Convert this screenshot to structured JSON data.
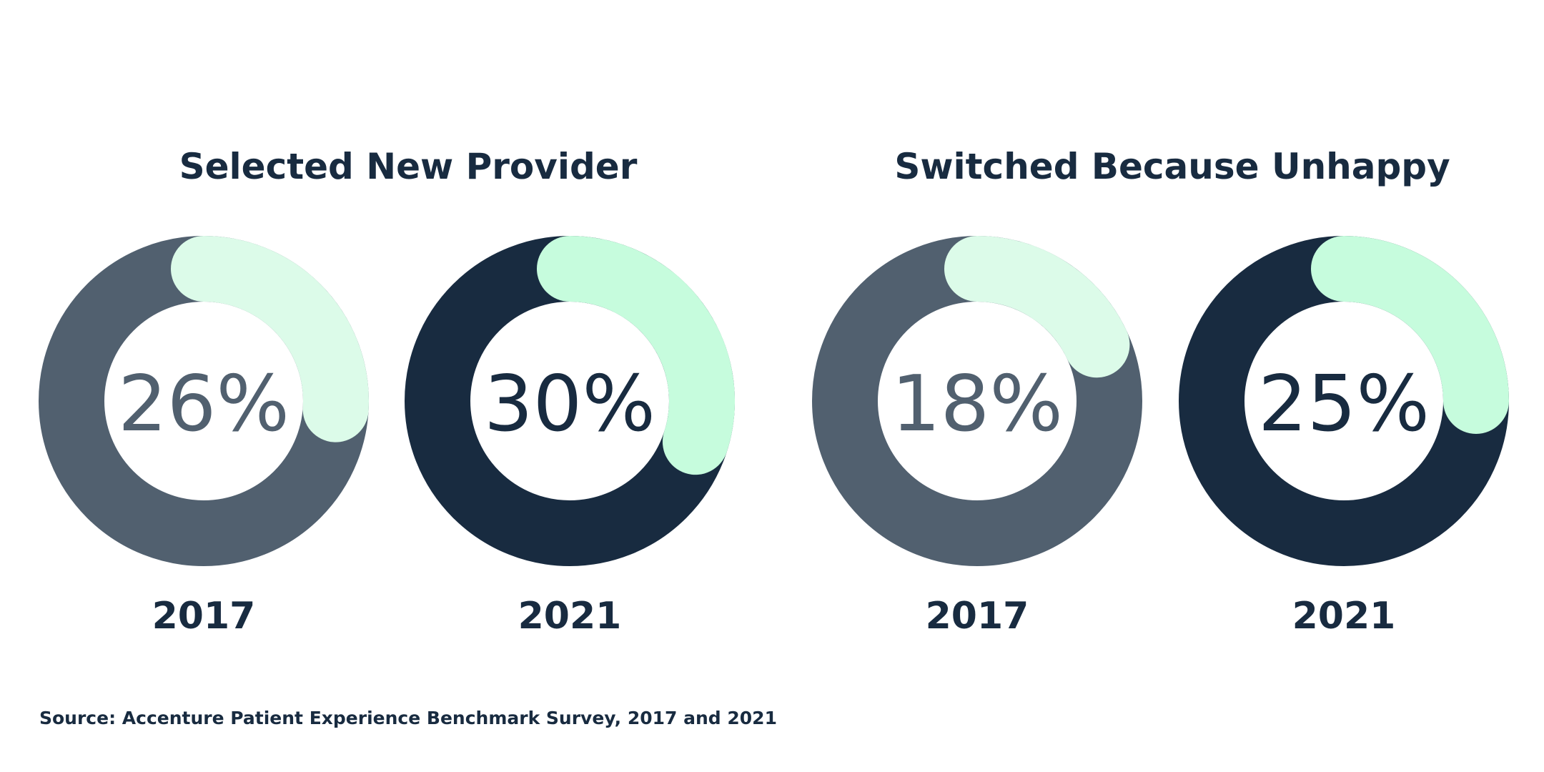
{
  "titles": {
    "left": "Selected New Provider",
    "right": "Switched Because Unhappy"
  },
  "source": "Source: Accenture Patient Experience Benchmark Survey, 2017 and 2021",
  "colors": {
    "track_2017": "#51606f",
    "track_2021": "#182b40",
    "arc_2017": "#dcfbe9",
    "arc_2021": "#c6fcdd",
    "value_2017": "#51606f",
    "value_2021": "#182b40",
    "year_label": "#182b40"
  },
  "chart_data": [
    {
      "type": "pie",
      "title": "Selected New Provider",
      "series": [
        {
          "category": "2017",
          "value": 26,
          "label": "26%"
        },
        {
          "category": "2021",
          "value": 30,
          "label": "30%"
        }
      ]
    },
    {
      "type": "pie",
      "title": "Switched Because Unhappy",
      "series": [
        {
          "category": "2017",
          "value": 18,
          "label": "18%"
        },
        {
          "category": "2021",
          "value": 25,
          "label": "25%"
        }
      ]
    }
  ]
}
